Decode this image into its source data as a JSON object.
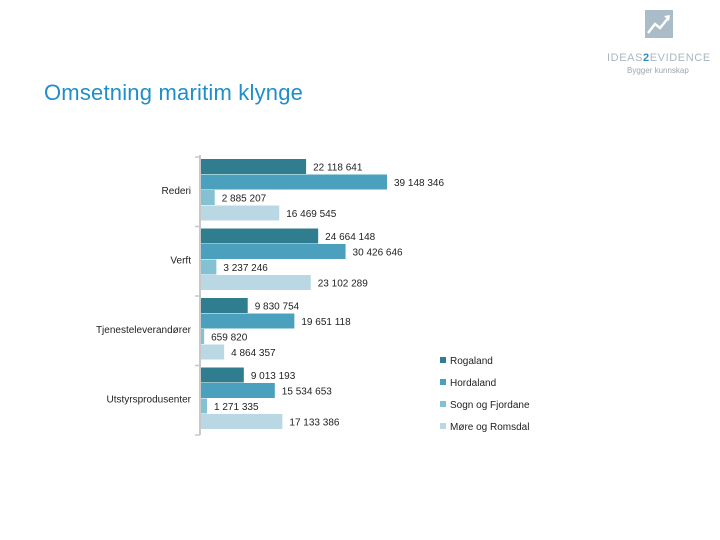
{
  "title": "Omsetning maritim klynge",
  "logo": {
    "name_part1": "IDEAS",
    "name_part2": "2",
    "name_part3": "EVIDENCE",
    "tagline": "Bygger kunnskap",
    "icon": "trend-up-logo-icon"
  },
  "colors": {
    "title": "#1f8ec9",
    "Rogaland": "#2f7d8f",
    "Hordaland": "#4aa0bd",
    "Sogn og Fjordane": "#84c1d3",
    "Møre og Romsdal": "#b9d8e3"
  },
  "chart_data": {
    "type": "bar",
    "orientation": "horizontal",
    "categories": [
      "Rederi",
      "Verft",
      "Tjenesteleverandører",
      "Utstyrsprodusenter"
    ],
    "series": [
      {
        "name": "Rogaland",
        "values": [
          22118641,
          24664148,
          9830754,
          9013193
        ],
        "labels": [
          "22 118 641",
          "24 664 148",
          "9 830 754",
          "9 013 193"
        ]
      },
      {
        "name": "Hordaland",
        "values": [
          39148346,
          30426646,
          19651118,
          15534653
        ],
        "labels": [
          "39 148 346",
          "30 426 646",
          "19 651 118",
          "15 534 653"
        ]
      },
      {
        "name": "Sogn og Fjordane",
        "values": [
          2885207,
          3237246,
          659820,
          1271335
        ],
        "labels": [
          "2 885 207",
          "3 237 246",
          "659 820",
          "1 271 335"
        ]
      },
      {
        "name": "Møre og Romsdal",
        "values": [
          16469545,
          23102289,
          4864357,
          17133386
        ],
        "labels": [
          "16 469 545",
          "23 102 289",
          "4 864 357",
          "17 133 386"
        ]
      }
    ],
    "xlim": [
      0,
      40000000
    ],
    "legend_position": "bottom-right",
    "grid": false
  }
}
